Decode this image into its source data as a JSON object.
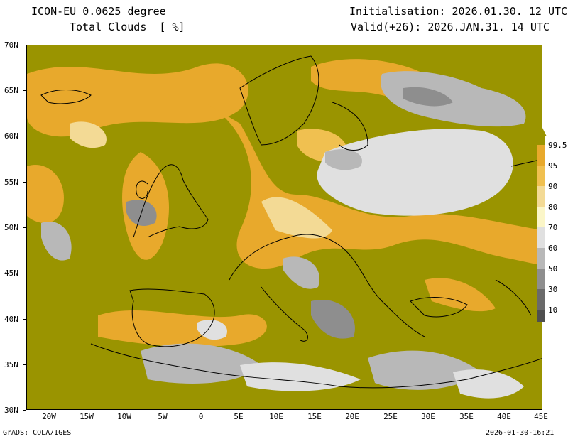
{
  "header": {
    "model": "ICON-EU 0.0625 degree",
    "variable": "Total Clouds  [ %]",
    "init": "Initialisation: 2026.01.30. 12 UTC",
    "valid": "Valid(+26): 2026.JAN.31. 14 UTC"
  },
  "axes": {
    "lat_labels": [
      "70N",
      "65N",
      "60N",
      "55N",
      "50N",
      "45N",
      "40N",
      "35N",
      "30N"
    ],
    "lon_labels": [
      "20W",
      "15W",
      "10W",
      "5W",
      "0",
      "5E",
      "10E",
      "15E",
      "20E",
      "25E",
      "30E",
      "35E",
      "40E",
      "45E"
    ]
  },
  "colorbar": {
    "levels": [
      "99.5",
      "95",
      "90",
      "80",
      "70",
      "60",
      "50",
      "30",
      "10"
    ],
    "colors": [
      "#9a9400",
      "#e8a92c",
      "#f0c050",
      "#f3da95",
      "#fbf6c8",
      "#e0e0e0",
      "#b8b8b8",
      "#8e8e8e",
      "#6a6a6a",
      "#4f4f4f"
    ]
  },
  "footer": {
    "left": "GrADS: COLA/IGES",
    "right": "2026-01-30-16:21"
  }
}
